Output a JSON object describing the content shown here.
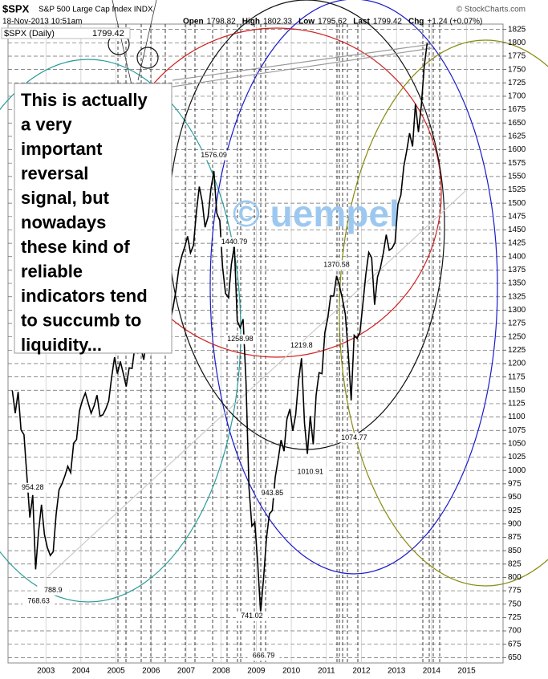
{
  "chart_data": {
    "type": "line",
    "symbol": "$SPX",
    "index_name": "S&P 500 Large Cap Index INDX",
    "source": "© StockCharts.com",
    "timestamp": "18-Nov-2013 10:51am",
    "quote": [
      {
        "label": "Open",
        "value": 1798.82
      },
      {
        "label": "High",
        "value": 1802.33
      },
      {
        "label": "Low",
        "value": 1795.62
      },
      {
        "label": "Last",
        "value": 1799.42
      },
      {
        "label": "Chg",
        "value": "+1.24 (+0.07%)"
      }
    ],
    "watermark": "© uempel",
    "callout": [
      "This is actually",
      "a very",
      "important",
      "reversal",
      "signal, but",
      "nowadays",
      "these kind of",
      "reliable",
      "indicators tend",
      "to succumb to",
      "liquidity..."
    ],
    "x": [
      "2002-01",
      "2002-02",
      "2002-03",
      "2002-04",
      "2002-05",
      "2002-06",
      "2002-07",
      "2002-08",
      "2002-09",
      "2002-10",
      "2002-11",
      "2002-12",
      "2003-01",
      "2003-02",
      "2003-03",
      "2003-04",
      "2003-05",
      "2003-06",
      "2003-07",
      "2003-08",
      "2003-09",
      "2003-10",
      "2003-11",
      "2003-12",
      "2004-01",
      "2004-02",
      "2004-03",
      "2004-04",
      "2004-05",
      "2004-06",
      "2004-07",
      "2004-08",
      "2004-09",
      "2004-10",
      "2004-11",
      "2004-12",
      "2005-01",
      "2005-02",
      "2005-03",
      "2005-04",
      "2005-05",
      "2005-06",
      "2005-07",
      "2005-08",
      "2005-09",
      "2005-10",
      "2005-11",
      "2005-12",
      "2006-01",
      "2006-02",
      "2006-03",
      "2006-04",
      "2006-05",
      "2006-06",
      "2006-07",
      "2006-08",
      "2006-09",
      "2006-10",
      "2006-11",
      "2006-12",
      "2007-01",
      "2007-02",
      "2007-03",
      "2007-04",
      "2007-05",
      "2007-06",
      "2007-07",
      "2007-08",
      "2007-09",
      "2007-10",
      "2007-11",
      "2007-12",
      "2008-01",
      "2008-02",
      "2008-03",
      "2008-04",
      "2008-05",
      "2008-06",
      "2008-07",
      "2008-08",
      "2008-09",
      "2008-10",
      "2008-11",
      "2008-12",
      "2009-01",
      "2009-02",
      "2009-03",
      "2009-04",
      "2009-05",
      "2009-06",
      "2009-07",
      "2009-08",
      "2009-09",
      "2009-10",
      "2009-11",
      "2009-12",
      "2010-01",
      "2010-02",
      "2010-03",
      "2010-04",
      "2010-05",
      "2010-06",
      "2010-07",
      "2010-08",
      "2010-09",
      "2010-10",
      "2010-11",
      "2010-12",
      "2011-01",
      "2011-02",
      "2011-03",
      "2011-04",
      "2011-05",
      "2011-06",
      "2011-07",
      "2011-08",
      "2011-09",
      "2011-10",
      "2011-11",
      "2011-12",
      "2012-01",
      "2012-02",
      "2012-03",
      "2012-04",
      "2012-05",
      "2012-06",
      "2012-07",
      "2012-08",
      "2012-09",
      "2012-10",
      "2012-11",
      "2012-12",
      "2013-01",
      "2013-02",
      "2013-03",
      "2013-04",
      "2013-05",
      "2013-06",
      "2013-07",
      "2013-08",
      "2013-09",
      "2013-10",
      "2013-11"
    ],
    "series": [
      {
        "name": "$SPX (Daily)",
        "color": "#000000",
        "values": [
          1150,
          1107,
          1147,
          1076,
          1067,
          990,
          912,
          954,
          815,
          886,
          936,
          880,
          856,
          841,
          848,
          917,
          964,
          975,
          990,
          1008,
          996,
          1051,
          1058,
          1112,
          1131,
          1145,
          1126,
          1107,
          1121,
          1141,
          1102,
          1104,
          1115,
          1130,
          1174,
          1212,
          1181,
          1204,
          1181,
          1157,
          1192,
          1191,
          1234,
          1220,
          1229,
          1207,
          1249,
          1248,
          1280,
          1281,
          1295,
          1311,
          1270,
          1270,
          1277,
          1304,
          1336,
          1378,
          1401,
          1418,
          1438,
          1407,
          1421,
          1482,
          1531,
          1503,
          1455,
          1474,
          1527,
          1560,
          1481,
          1468,
          1379,
          1331,
          1323,
          1386,
          1420,
          1280,
          1267,
          1283,
          1166,
          969,
          896,
          903,
          826,
          735,
          798,
          873,
          919,
          925,
          987,
          1021,
          1057,
          1036,
          1096,
          1115,
          1074,
          1104,
          1169,
          1210,
          1089,
          1031,
          1102,
          1049,
          1141,
          1183,
          1181,
          1258,
          1286,
          1327,
          1326,
          1364,
          1345,
          1321,
          1292,
          1219,
          1131,
          1253,
          1247,
          1258,
          1312,
          1366,
          1408,
          1398,
          1310,
          1362,
          1379,
          1407,
          1441,
          1412,
          1416,
          1426,
          1498,
          1515,
          1569,
          1598,
          1631,
          1606,
          1686,
          1633,
          1682,
          1757,
          1799.42
        ]
      }
    ],
    "annotations": [
      {
        "x": "2007-10",
        "value": 1576.09
      },
      {
        "x": "2008-05",
        "value": 1440.79
      },
      {
        "x": "2008-07",
        "value": 1258.98
      },
      {
        "x": "2011-04",
        "value": 1370.58
      },
      {
        "x": "2010-04",
        "value": 1219.8
      },
      {
        "x": "2011-10",
        "value": 1074.77
      },
      {
        "x": "2010-07",
        "value": 1010.91
      },
      {
        "x": "2002-08",
        "value": 954.28
      },
      {
        "x": "2009-06",
        "value": 943.85
      },
      {
        "x": "2003-03",
        "value": 788.9
      },
      {
        "x": "2002-10",
        "value": 768.63
      },
      {
        "x": "2008-11",
        "value": 741.02
      },
      {
        "x": "2009-03",
        "value": 666.79
      }
    ],
    "xlim": [
      2001.92,
      2016.04
    ],
    "xticks": [
      2003,
      2004,
      2005,
      2006,
      2007,
      2008,
      2009,
      2010,
      2011,
      2012,
      2013,
      2014,
      2015
    ],
    "ylim": [
      640,
      1835
    ],
    "yticks": [
      650,
      675,
      700,
      725,
      750,
      775,
      800,
      825,
      850,
      875,
      900,
      925,
      950,
      975,
      1000,
      1025,
      1050,
      1075,
      1100,
      1125,
      1150,
      1175,
      1200,
      1225,
      1250,
      1275,
      1300,
      1325,
      1350,
      1375,
      1400,
      1425,
      1450,
      1475,
      1500,
      1525,
      1550,
      1575,
      1600,
      1625,
      1650,
      1675,
      1700,
      1725,
      1750,
      1775,
      1800,
      1825
    ],
    "grid": true
  }
}
